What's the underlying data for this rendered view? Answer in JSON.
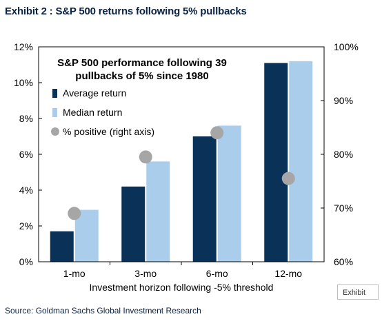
{
  "header": {
    "title": "Exhibit 2 : S&P 500 returns following 5% pullbacks"
  },
  "source": "Source: Goldman Sachs Global Investment Research",
  "tag": "Exhibit",
  "chart_data": {
    "type": "bar",
    "title": "S&P 500 performance following 39\npullbacks of 5% since 1980",
    "xlabel": "Investment horizon following -5% threshold",
    "categories": [
      "1-mo",
      "3-mo",
      "6-mo",
      "12-mo"
    ],
    "ylim": [
      0,
      12
    ],
    "yticks": [
      "0%",
      "2%",
      "4%",
      "6%",
      "8%",
      "10%",
      "12%"
    ],
    "y2lim": [
      60,
      100
    ],
    "y2ticks": [
      "60%",
      "70%",
      "80%",
      "90%",
      "100%"
    ],
    "legend_position": "top-left",
    "grid": false,
    "series": [
      {
        "name": "Average return",
        "type": "bar",
        "axis": "left",
        "color": "#0a3158",
        "values": [
          1.7,
          4.2,
          7.0,
          11.1
        ]
      },
      {
        "name": "Median return",
        "type": "bar",
        "axis": "left",
        "color": "#abcdec",
        "values": [
          2.9,
          5.6,
          7.6,
          11.2
        ]
      },
      {
        "name": "% positive (right axis)",
        "type": "scatter",
        "axis": "right",
        "color": "#a6a6a6",
        "values": [
          69,
          79.5,
          84,
          75.5
        ]
      }
    ]
  }
}
